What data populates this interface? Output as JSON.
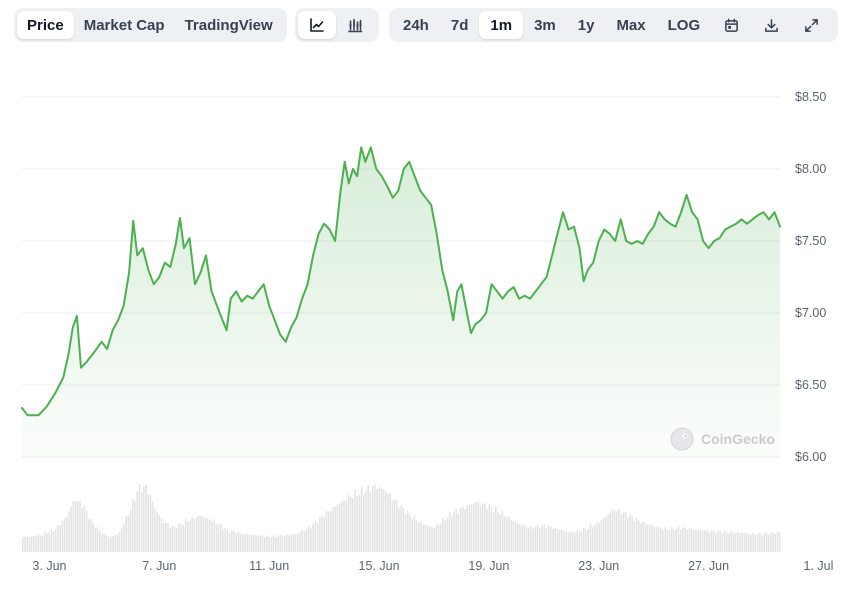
{
  "toolbar": {
    "view_tabs": [
      {
        "label": "Price",
        "active": true
      },
      {
        "label": "Market Cap",
        "active": false
      },
      {
        "label": "TradingView",
        "active": false
      }
    ],
    "chart_type_buttons": [
      {
        "icon": "line-chart-icon",
        "active": true
      },
      {
        "icon": "candlestick-chart-icon",
        "active": false
      }
    ],
    "range_tabs": [
      {
        "label": "24h",
        "active": false
      },
      {
        "label": "7d",
        "active": false
      },
      {
        "label": "1m",
        "active": true
      },
      {
        "label": "3m",
        "active": false
      },
      {
        "label": "1y",
        "active": false
      },
      {
        "label": "Max",
        "active": false
      },
      {
        "label": "LOG",
        "active": false
      }
    ],
    "action_icons": [
      "calendar-icon",
      "download-icon",
      "expand-icon"
    ]
  },
  "watermark": {
    "text": "CoinGecko",
    "icon": "coingecko-logo-icon"
  },
  "colors": {
    "line": "#4caf50",
    "fill_top": "#4caf50",
    "volume": "#e4e4e7",
    "grid": "#eceef2",
    "axis_text": "#5b6472"
  },
  "chart_data": {
    "type": "area",
    "x_start": "2024-06-02",
    "x_end": "2024-07-02",
    "x_ticks": [
      "3. Jun",
      "7. Jun",
      "11. Jun",
      "15. Jun",
      "19. Jun",
      "23. Jun",
      "27. Jun",
      "1. Jul"
    ],
    "y_ticks": [
      "$8.50",
      "$8.00",
      "$7.50",
      "$7.00",
      "$6.50",
      "$6.00"
    ],
    "y_tick_values": [
      8.5,
      8.0,
      7.5,
      7.0,
      6.5,
      6.0
    ],
    "ylim": [
      6.0,
      8.5
    ],
    "grid": true,
    "series": [
      {
        "values": [
          [
            0.0,
            6.34
          ],
          [
            0.2,
            6.29
          ],
          [
            0.6,
            6.29
          ],
          [
            0.9,
            6.35
          ],
          [
            1.2,
            6.44
          ],
          [
            1.5,
            6.55
          ],
          [
            1.7,
            6.72
          ],
          [
            1.85,
            6.9
          ],
          [
            2.0,
            6.98
          ],
          [
            2.15,
            6.62
          ],
          [
            2.35,
            6.66
          ],
          [
            2.6,
            6.72
          ],
          [
            2.9,
            6.8
          ],
          [
            3.1,
            6.75
          ],
          [
            3.3,
            6.88
          ],
          [
            3.5,
            6.95
          ],
          [
            3.7,
            7.05
          ],
          [
            3.9,
            7.28
          ],
          [
            4.05,
            7.64
          ],
          [
            4.2,
            7.4
          ],
          [
            4.4,
            7.45
          ],
          [
            4.6,
            7.3
          ],
          [
            4.8,
            7.2
          ],
          [
            5.0,
            7.25
          ],
          [
            5.2,
            7.35
          ],
          [
            5.4,
            7.32
          ],
          [
            5.6,
            7.48
          ],
          [
            5.75,
            7.66
          ],
          [
            5.9,
            7.45
          ],
          [
            6.1,
            7.52
          ],
          [
            6.3,
            7.2
          ],
          [
            6.5,
            7.28
          ],
          [
            6.7,
            7.4
          ],
          [
            6.9,
            7.15
          ],
          [
            7.1,
            7.05
          ],
          [
            7.3,
            6.95
          ],
          [
            7.45,
            6.88
          ],
          [
            7.6,
            7.1
          ],
          [
            7.8,
            7.15
          ],
          [
            8.0,
            7.08
          ],
          [
            8.2,
            7.12
          ],
          [
            8.4,
            7.1
          ],
          [
            8.6,
            7.15
          ],
          [
            8.8,
            7.2
          ],
          [
            9.0,
            7.05
          ],
          [
            9.2,
            6.95
          ],
          [
            9.4,
            6.85
          ],
          [
            9.6,
            6.8
          ],
          [
            9.8,
            6.9
          ],
          [
            10.0,
            6.97
          ],
          [
            10.2,
            7.1
          ],
          [
            10.4,
            7.2
          ],
          [
            10.6,
            7.4
          ],
          [
            10.8,
            7.55
          ],
          [
            11.0,
            7.62
          ],
          [
            11.2,
            7.58
          ],
          [
            11.4,
            7.5
          ],
          [
            11.6,
            7.85
          ],
          [
            11.75,
            8.05
          ],
          [
            11.9,
            7.9
          ],
          [
            12.05,
            8.0
          ],
          [
            12.2,
            7.95
          ],
          [
            12.35,
            8.15
          ],
          [
            12.5,
            8.05
          ],
          [
            12.7,
            8.15
          ],
          [
            12.9,
            8.0
          ],
          [
            13.1,
            7.95
          ],
          [
            13.3,
            7.88
          ],
          [
            13.5,
            7.8
          ],
          [
            13.7,
            7.85
          ],
          [
            13.9,
            8.0
          ],
          [
            14.1,
            8.05
          ],
          [
            14.3,
            7.95
          ],
          [
            14.5,
            7.85
          ],
          [
            14.7,
            7.8
          ],
          [
            14.9,
            7.75
          ],
          [
            15.1,
            7.55
          ],
          [
            15.3,
            7.3
          ],
          [
            15.5,
            7.15
          ],
          [
            15.7,
            6.95
          ],
          [
            15.85,
            7.15
          ],
          [
            16.0,
            7.2
          ],
          [
            16.2,
            7.0
          ],
          [
            16.35,
            6.86
          ],
          [
            16.5,
            6.92
          ],
          [
            16.7,
            6.95
          ],
          [
            16.9,
            7.0
          ],
          [
            17.1,
            7.2
          ],
          [
            17.3,
            7.15
          ],
          [
            17.5,
            7.1
          ],
          [
            17.7,
            7.15
          ],
          [
            17.9,
            7.18
          ],
          [
            18.1,
            7.1
          ],
          [
            18.3,
            7.12
          ],
          [
            18.5,
            7.1
          ],
          [
            18.7,
            7.15
          ],
          [
            18.9,
            7.2
          ],
          [
            19.1,
            7.25
          ],
          [
            19.3,
            7.4
          ],
          [
            19.5,
            7.55
          ],
          [
            19.7,
            7.7
          ],
          [
            19.9,
            7.58
          ],
          [
            20.1,
            7.6
          ],
          [
            20.3,
            7.45
          ],
          [
            20.45,
            7.22
          ],
          [
            20.6,
            7.3
          ],
          [
            20.8,
            7.35
          ],
          [
            21.0,
            7.5
          ],
          [
            21.2,
            7.58
          ],
          [
            21.4,
            7.55
          ],
          [
            21.6,
            7.5
          ],
          [
            21.8,
            7.65
          ],
          [
            22.0,
            7.5
          ],
          [
            22.2,
            7.48
          ],
          [
            22.4,
            7.5
          ],
          [
            22.6,
            7.48
          ],
          [
            22.8,
            7.55
          ],
          [
            23.0,
            7.6
          ],
          [
            23.2,
            7.7
          ],
          [
            23.4,
            7.65
          ],
          [
            23.6,
            7.62
          ],
          [
            23.8,
            7.6
          ],
          [
            24.0,
            7.7
          ],
          [
            24.2,
            7.82
          ],
          [
            24.4,
            7.7
          ],
          [
            24.6,
            7.65
          ],
          [
            24.8,
            7.5
          ],
          [
            25.0,
            7.45
          ],
          [
            25.2,
            7.5
          ],
          [
            25.4,
            7.52
          ],
          [
            25.6,
            7.58
          ],
          [
            25.8,
            7.6
          ],
          [
            26.0,
            7.62
          ],
          [
            26.2,
            7.65
          ],
          [
            26.4,
            7.62
          ],
          [
            26.6,
            7.65
          ],
          [
            26.8,
            7.68
          ],
          [
            27.0,
            7.7
          ],
          [
            27.2,
            7.65
          ],
          [
            27.4,
            7.7
          ],
          [
            27.6,
            7.6
          ]
        ]
      }
    ],
    "volume_profile": [
      [
        0.0,
        0.2
      ],
      [
        0.6,
        0.22
      ],
      [
        1.2,
        0.3
      ],
      [
        1.6,
        0.48
      ],
      [
        1.9,
        0.7
      ],
      [
        2.2,
        0.62
      ],
      [
        2.5,
        0.4
      ],
      [
        2.9,
        0.24
      ],
      [
        3.2,
        0.2
      ],
      [
        3.5,
        0.24
      ],
      [
        3.9,
        0.55
      ],
      [
        4.2,
        0.84
      ],
      [
        4.5,
        0.86
      ],
      [
        4.8,
        0.6
      ],
      [
        5.1,
        0.4
      ],
      [
        5.5,
        0.32
      ],
      [
        6.0,
        0.42
      ],
      [
        6.5,
        0.48
      ],
      [
        7.0,
        0.4
      ],
      [
        7.5,
        0.28
      ],
      [
        8.0,
        0.24
      ],
      [
        8.5,
        0.22
      ],
      [
        9.0,
        0.2
      ],
      [
        9.5,
        0.22
      ],
      [
        10.0,
        0.24
      ],
      [
        10.5,
        0.34
      ],
      [
        11.0,
        0.5
      ],
      [
        11.5,
        0.64
      ],
      [
        12.0,
        0.75
      ],
      [
        12.5,
        0.82
      ],
      [
        12.8,
        0.88
      ],
      [
        13.2,
        0.82
      ],
      [
        13.6,
        0.66
      ],
      [
        14.0,
        0.52
      ],
      [
        14.5,
        0.38
      ],
      [
        15.0,
        0.32
      ],
      [
        15.5,
        0.48
      ],
      [
        16.0,
        0.58
      ],
      [
        16.5,
        0.66
      ],
      [
        17.0,
        0.6
      ],
      [
        17.5,
        0.5
      ],
      [
        18.0,
        0.38
      ],
      [
        18.5,
        0.32
      ],
      [
        19.0,
        0.35
      ],
      [
        19.5,
        0.3
      ],
      [
        20.0,
        0.26
      ],
      [
        20.5,
        0.3
      ],
      [
        21.0,
        0.4
      ],
      [
        21.5,
        0.56
      ],
      [
        22.0,
        0.5
      ],
      [
        22.5,
        0.4
      ],
      [
        23.0,
        0.34
      ],
      [
        23.5,
        0.3
      ],
      [
        24.0,
        0.32
      ],
      [
        24.5,
        0.3
      ],
      [
        25.0,
        0.28
      ],
      [
        25.5,
        0.26
      ],
      [
        26.0,
        0.26
      ],
      [
        26.5,
        0.24
      ],
      [
        27.0,
        0.24
      ],
      [
        27.6,
        0.26
      ]
    ]
  }
}
